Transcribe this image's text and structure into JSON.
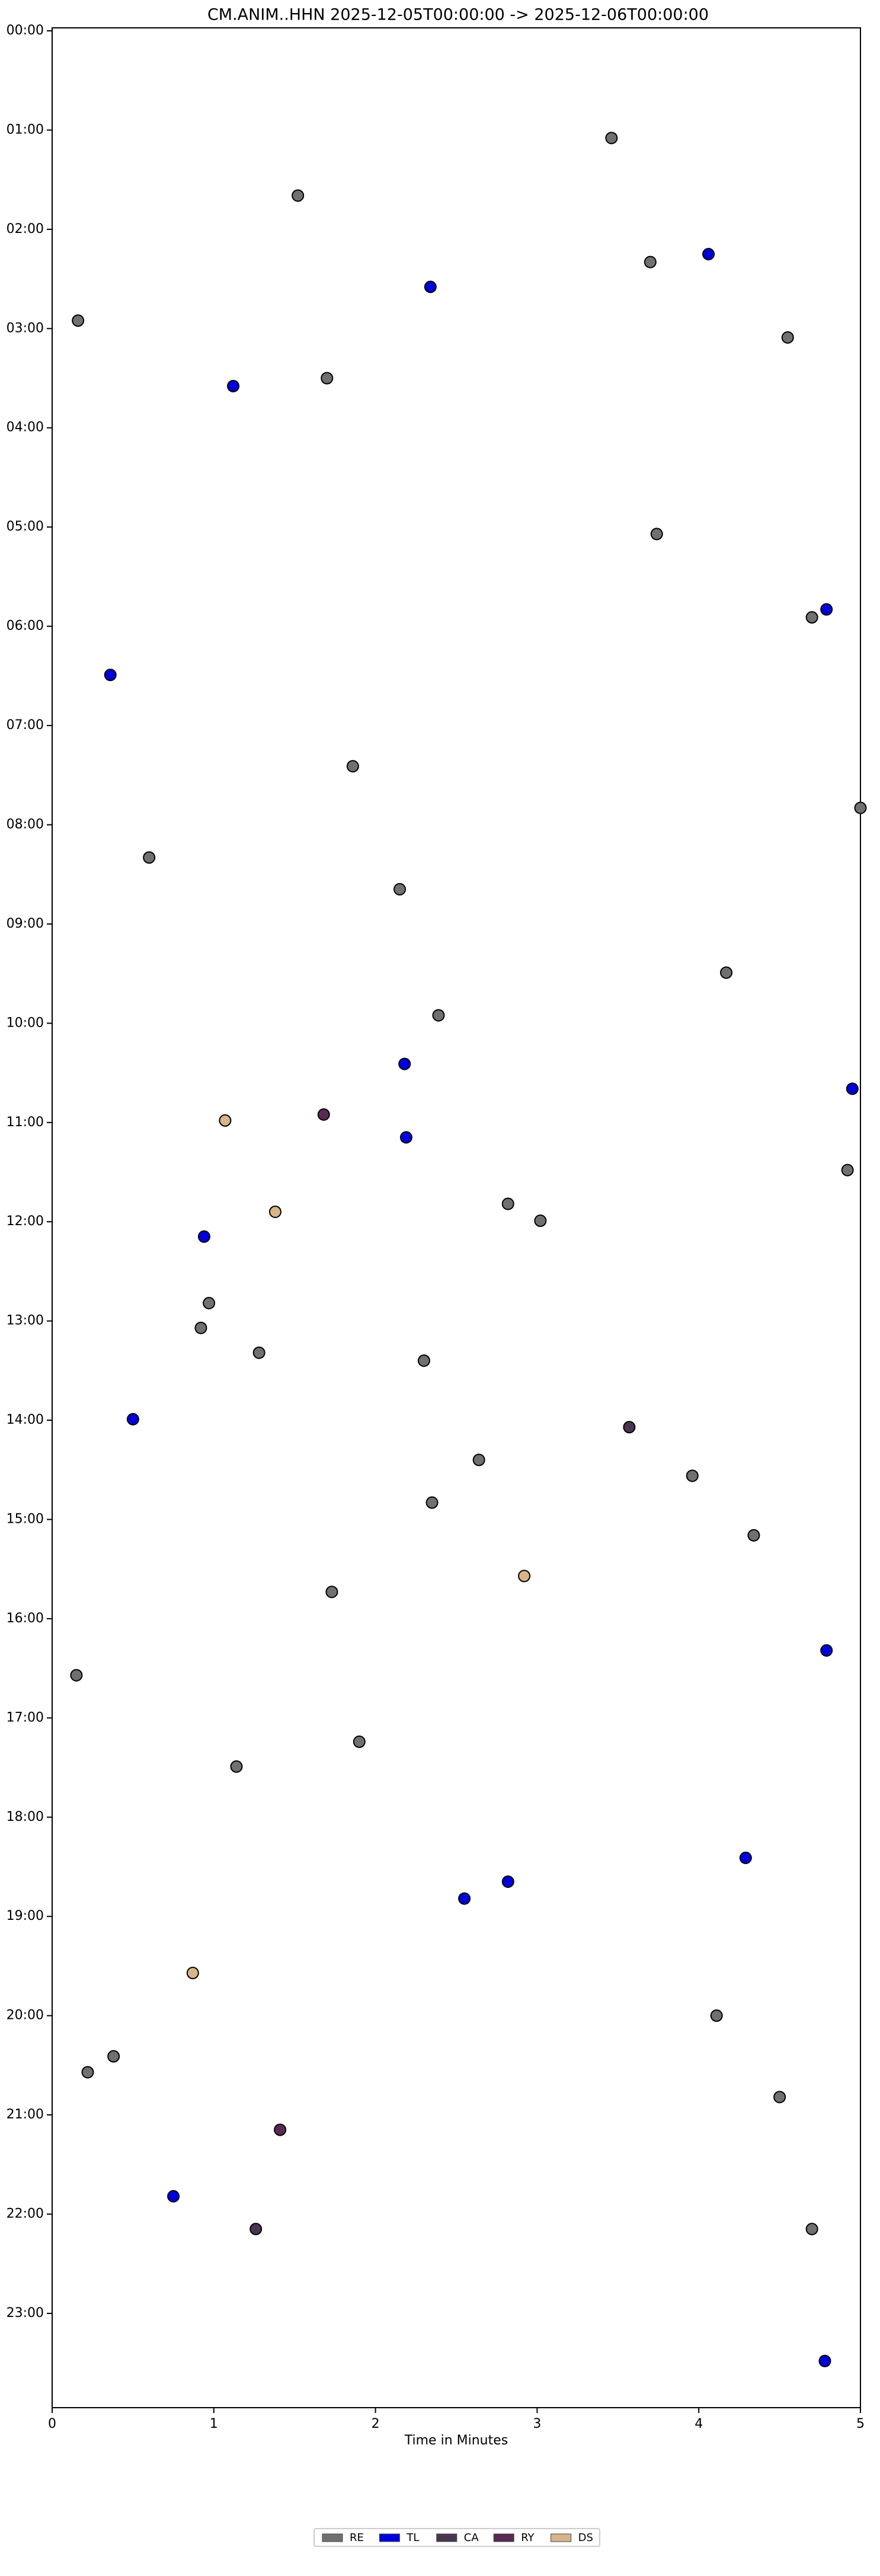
{
  "chart_data": {
    "type": "scatter",
    "title": "CM.ANIM..HHN  2025-12-05T00:00:00 -> 2025-12-06T00:00:00",
    "x_label": "Time in Minutes",
    "xlim": [
      0,
      5
    ],
    "xticks": [
      0,
      1,
      2,
      3,
      4,
      5
    ],
    "ylim": [
      23.95,
      -0.03
    ],
    "yticks": [
      {
        "value": 0,
        "label": "00:00"
      },
      {
        "value": 1,
        "label": "01:00"
      },
      {
        "value": 2,
        "label": "02:00"
      },
      {
        "value": 3,
        "label": "03:00"
      },
      {
        "value": 4,
        "label": "04:00"
      },
      {
        "value": 5,
        "label": "05:00"
      },
      {
        "value": 6,
        "label": "06:00"
      },
      {
        "value": 7,
        "label": "07:00"
      },
      {
        "value": 8,
        "label": "08:00"
      },
      {
        "value": 9,
        "label": "09:00"
      },
      {
        "value": 10,
        "label": "10:00"
      },
      {
        "value": 11,
        "label": "11:00"
      },
      {
        "value": 12,
        "label": "12:00"
      },
      {
        "value": 13,
        "label": "13:00"
      },
      {
        "value": 14,
        "label": "14:00"
      },
      {
        "value": 15,
        "label": "15:00"
      },
      {
        "value": 16,
        "label": "16:00"
      },
      {
        "value": 17,
        "label": "17:00"
      },
      {
        "value": 18,
        "label": "18:00"
      },
      {
        "value": 19,
        "label": "19:00"
      },
      {
        "value": 20,
        "label": "20:00"
      },
      {
        "value": 21,
        "label": "21:00"
      },
      {
        "value": 22,
        "label": "22:00"
      },
      {
        "value": 23,
        "label": "23:00"
      }
    ],
    "legend_position": "bottom",
    "series": [
      {
        "name": "RE",
        "color": "#707070",
        "x": [
          3.46,
          1.52,
          3.7,
          0.16,
          4.55,
          1.7,
          3.74,
          4.7,
          1.86,
          5.0,
          0.6,
          2.15,
          4.17,
          2.39,
          4.92,
          2.82,
          3.02,
          0.97,
          0.92,
          1.28,
          2.3,
          2.64,
          3.96,
          2.35,
          4.34,
          1.73,
          0.15,
          1.9,
          1.14,
          4.11,
          0.38,
          0.22,
          4.5,
          4.7
        ],
        "values": [
          1.08,
          1.66,
          2.33,
          2.92,
          3.09,
          3.5,
          5.07,
          5.91,
          7.41,
          7.83,
          8.33,
          8.65,
          9.49,
          9.92,
          11.48,
          11.82,
          11.99,
          12.82,
          13.07,
          13.32,
          13.4,
          14.4,
          14.56,
          14.83,
          15.16,
          15.73,
          16.57,
          17.24,
          17.49,
          20.0,
          20.41,
          20.57,
          20.82,
          22.15
        ]
      },
      {
        "name": "TL",
        "color": "#0000dd",
        "x": [
          4.06,
          2.34,
          1.12,
          4.79,
          0.36,
          2.18,
          4.95,
          2.19,
          0.94,
          0.5,
          4.79,
          4.29,
          2.82,
          2.55,
          0.75,
          4.78
        ],
        "values": [
          2.25,
          2.58,
          3.58,
          5.83,
          6.49,
          10.41,
          10.66,
          11.15,
          12.15,
          13.99,
          16.32,
          18.41,
          18.65,
          18.82,
          21.82,
          23.48
        ]
      },
      {
        "name": "CA",
        "color": "#4a3550",
        "x": [
          3.57,
          1.26
        ],
        "values": [
          14.07,
          22.15
        ]
      },
      {
        "name": "RY",
        "color": "#5a2a55",
        "x": [
          1.68,
          1.41
        ],
        "values": [
          10.92,
          21.15
        ]
      },
      {
        "name": "DS",
        "color": "#d8b48a",
        "x": [
          1.07,
          1.38,
          2.92,
          0.87
        ],
        "values": [
          10.98,
          11.9,
          15.57,
          19.57
        ]
      }
    ]
  }
}
